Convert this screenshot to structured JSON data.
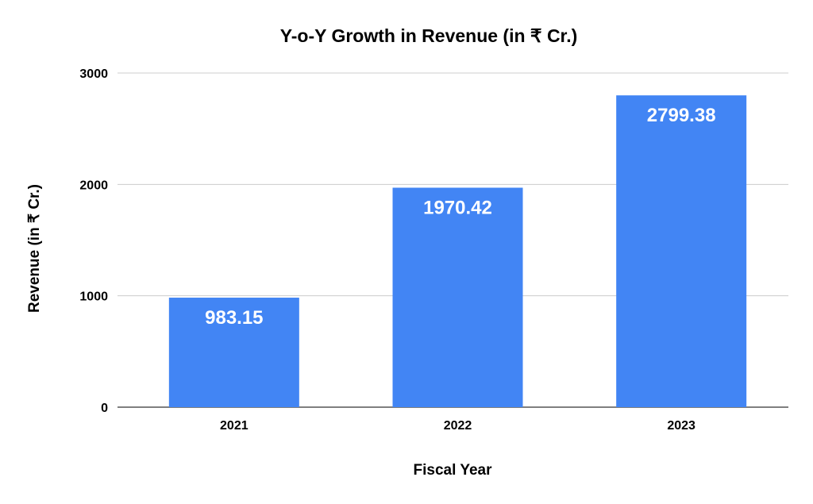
{
  "chart_data": {
    "type": "bar",
    "title": "Y-o-Y Growth in Revenue (in ₹ Cr.)",
    "xlabel": "Fiscal Year",
    "ylabel": "Revenue (in ₹ Cr.)",
    "categories": [
      "2021",
      "2022",
      "2023"
    ],
    "values": [
      983.15,
      1970.42,
      2799.38
    ],
    "data_labels": [
      "983.15",
      "1970.42",
      "2799.38"
    ],
    "ylim": [
      0,
      3000
    ],
    "yticks": [
      0,
      1000,
      2000,
      3000
    ],
    "grid": true,
    "legend": "none",
    "colors": {
      "bar": "#4285F4",
      "grid": "#cccccc",
      "axis": "#333333"
    }
  }
}
